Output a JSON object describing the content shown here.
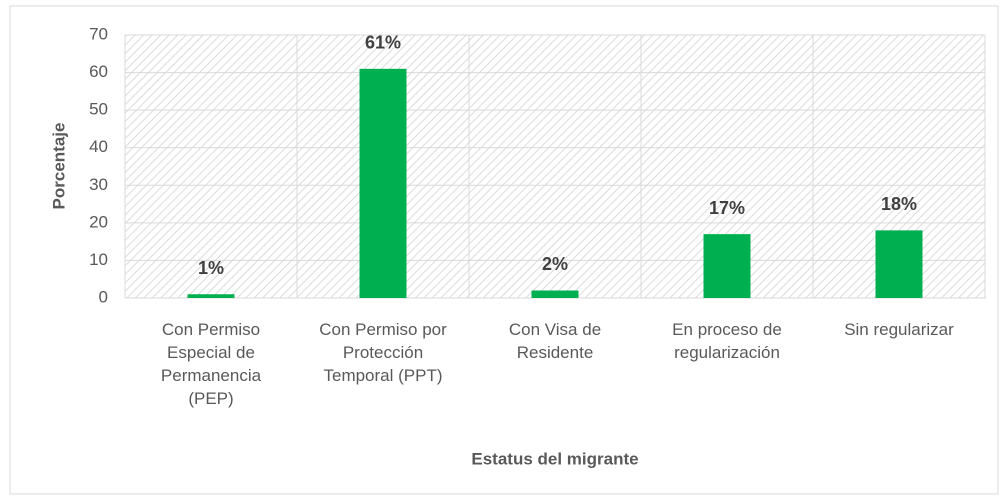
{
  "chart_data": {
    "type": "bar",
    "x_label": "Estatus del migrante",
    "y_label": "Porcentaje",
    "categories": [
      "Con Permiso Especial de Permanencia (PEP)",
      "Con Permiso por Protección Temporal (PPT)",
      "Con Visa de Residente",
      "En proceso de regularización",
      "Sin regularizar"
    ],
    "values": [
      1,
      61,
      2,
      17,
      18
    ],
    "value_labels": [
      "1%",
      "61%",
      "2%",
      "17%",
      "18%"
    ],
    "color": "#00b050",
    "ylim": [
      0,
      70
    ],
    "yticks": [
      0,
      10,
      20,
      30,
      40,
      50,
      60,
      70
    ],
    "grid": true
  }
}
